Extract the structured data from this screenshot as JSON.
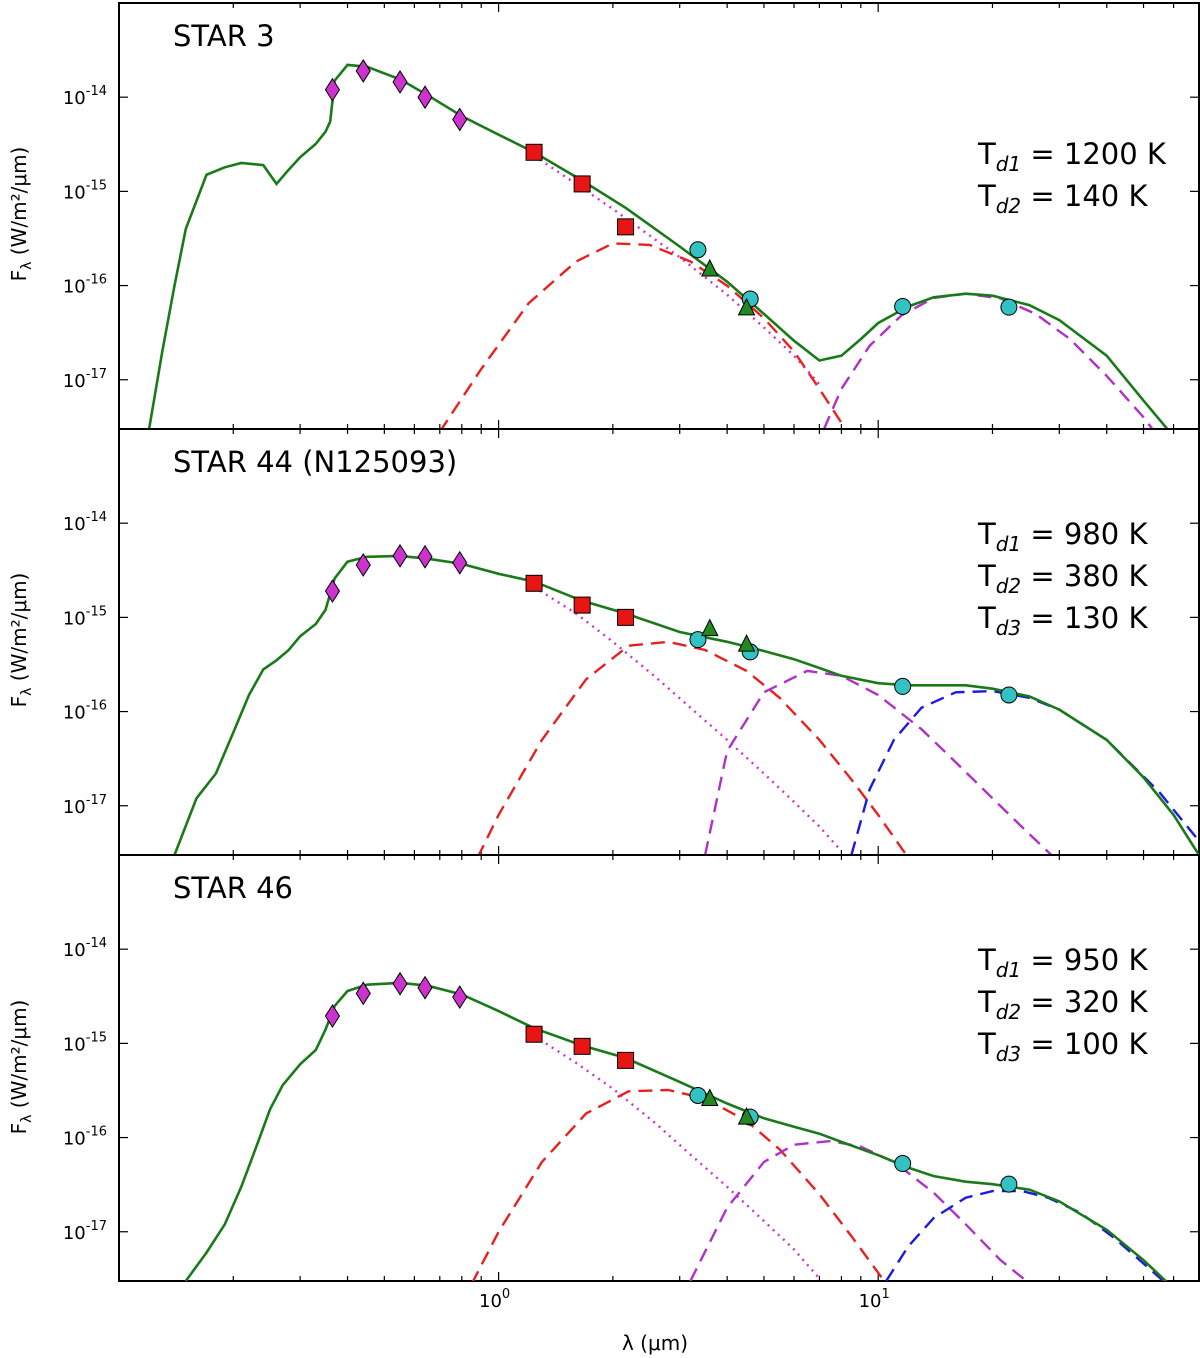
{
  "colors": {
    "model": "#1a7a1a",
    "photosphere": "#cc33cc",
    "dust1": "#e82020",
    "dust2": "#b030c8",
    "dust3": "#1a1ae0",
    "diamond": "#cc33cc",
    "square": "#e81515",
    "circle": "#33c2c2",
    "triangle": "#228822"
  },
  "figure": {
    "xlabel": "λ (μm)",
    "ylabel_prefix": "F",
    "ylabel_sub": "λ",
    "ylabel_units": "(W/m²/μm)"
  },
  "chart_data": [
    {
      "type": "line",
      "title": "STAR 3",
      "xscale": "log",
      "yscale": "log",
      "xlim": [
        0.1,
        70
      ],
      "ylim": [
        3e-18,
        1e-13
      ],
      "xticks": [
        {
          "value": 1,
          "base": "10",
          "exp": "0"
        },
        {
          "value": 10,
          "base": "10",
          "exp": "1"
        }
      ],
      "yticks": [
        {
          "value": 1e-14,
          "base": "10",
          "exp": "-14"
        },
        {
          "value": 1e-15,
          "base": "10",
          "exp": "-15"
        },
        {
          "value": 1e-16,
          "base": "10",
          "exp": "-16"
        },
        {
          "value": 1e-17,
          "base": "10",
          "exp": "-17"
        }
      ],
      "temperatures": [
        {
          "label": "T",
          "sub": "d1",
          "value": " = 1200 K"
        },
        {
          "label": "T",
          "sub": "d2",
          "value": " = 140 K"
        }
      ],
      "photometry": {
        "optical_diamonds": {
          "x": [
            0.365,
            0.44,
            0.55,
            0.64,
            0.79
          ],
          "y": [
            1.2e-14,
            1.9e-14,
            1.45e-14,
            1e-14,
            5.8e-15
          ]
        },
        "nir_squares": {
          "x": [
            1.24,
            1.66,
            2.16
          ],
          "y": [
            2.6e-15,
            1.2e-15,
            4.2e-16
          ]
        },
        "wise_circles": {
          "x": [
            3.35,
            4.6,
            11.6,
            22.1
          ],
          "y": [
            2.4e-16,
            7.2e-17,
            6e-17,
            5.9e-17
          ]
        },
        "irac_triangles": {
          "x": [
            3.6,
            4.5
          ],
          "y": [
            1.5e-16,
            5.8e-17
          ]
        }
      },
      "components": [
        {
          "name": "photosphere",
          "style": "dotted",
          "color": "photosphere",
          "x": [
            1.24,
            2,
            3,
            4,
            5,
            6,
            7
          ],
          "y": [
            2.4e-15,
            6.5e-16,
            2e-16,
            8e-17,
            3.6e-17,
            1.8e-17,
            9e-18
          ]
        },
        {
          "name": "dust1",
          "style": "dashed",
          "color": "dust1",
          "x": [
            0.7,
            0.9,
            1.2,
            1.6,
            2.0,
            2.5,
            3.2,
            4.0,
            5.0,
            6.0,
            7.0,
            8.0
          ],
          "y": [
            2.8e-18,
            1.3e-17,
            6.5e-17,
            1.8e-16,
            2.8e-16,
            2.7e-16,
            1.8e-16,
            1e-16,
            4.5e-17,
            2e-17,
            8e-18,
            3.5e-18
          ]
        },
        {
          "name": "dust2",
          "style": "dashed",
          "color": "dust2",
          "x": [
            7.2,
            8,
            9.5,
            11.5,
            14,
            17,
            21,
            26,
            32,
            40,
            50,
            60
          ],
          "y": [
            3e-18,
            8e-18,
            2.3e-17,
            4.8e-17,
            7.4e-17,
            8.2e-17,
            7.3e-17,
            5e-17,
            2.7e-17,
            1.1e-17,
            4e-18,
            1.5e-18
          ]
        }
      ],
      "model": {
        "x": [
          0.12,
          0.13,
          0.14,
          0.15,
          0.17,
          0.19,
          0.21,
          0.24,
          0.26,
          0.28,
          0.3,
          0.33,
          0.35,
          0.36,
          0.37,
          0.4,
          0.45,
          0.55,
          0.65,
          0.8,
          1.0,
          1.24,
          1.66,
          2.16,
          3.0,
          4.0,
          5.0,
          6.0,
          7.0,
          8.0,
          9.0,
          10,
          12,
          14,
          17,
          20,
          25,
          30,
          40,
          50,
          60
        ],
        "y": [
          3e-18,
          2e-17,
          1e-16,
          4e-16,
          1.5e-15,
          1.8e-15,
          2e-15,
          1.9e-15,
          1.2e-15,
          1.7e-15,
          2.3e-15,
          3.2e-15,
          4.3e-15,
          5.5e-15,
          1.5e-14,
          2.2e-14,
          2.1e-14,
          1.55e-14,
          1.05e-14,
          6.3e-15,
          4e-15,
          2.6e-15,
          1.3e-15,
          6.7e-16,
          2.6e-16,
          1.1e-16,
          5e-17,
          2.6e-17,
          1.6e-17,
          1.8e-17,
          2.7e-17,
          4e-17,
          6e-17,
          7.5e-17,
          8.2e-17,
          7.8e-17,
          6.2e-17,
          4.3e-17,
          1.8e-17,
          6e-18,
          2.5e-18
        ]
      }
    },
    {
      "type": "line",
      "title": "STAR 44 (N125093)",
      "xscale": "log",
      "yscale": "log",
      "xlim": [
        0.1,
        70
      ],
      "ylim": [
        3e-18,
        1e-13
      ],
      "xticks": [
        {
          "value": 1,
          "base": "10",
          "exp": "0"
        },
        {
          "value": 10,
          "base": "10",
          "exp": "1"
        }
      ],
      "yticks": [
        {
          "value": 1e-14,
          "base": "10",
          "exp": "-14"
        },
        {
          "value": 1e-15,
          "base": "10",
          "exp": "-15"
        },
        {
          "value": 1e-16,
          "base": "10",
          "exp": "-16"
        },
        {
          "value": 1e-17,
          "base": "10",
          "exp": "-17"
        }
      ],
      "temperatures": [
        {
          "label": "T",
          "sub": "d1",
          "value": " = 980 K"
        },
        {
          "label": "T",
          "sub": "d2",
          "value": " = 380 K"
        },
        {
          "label": "T",
          "sub": "d3",
          "value": " = 130 K"
        }
      ],
      "photometry": {
        "optical_diamonds": {
          "x": [
            0.365,
            0.44,
            0.55,
            0.64,
            0.79
          ],
          "y": [
            1.9e-15,
            3.6e-15,
            4.5e-15,
            4.4e-15,
            3.8e-15
          ]
        },
        "nir_squares": {
          "x": [
            1.24,
            1.66,
            2.16
          ],
          "y": [
            2.3e-15,
            1.35e-15,
            1e-15
          ]
        },
        "wise_circles": {
          "x": [
            3.35,
            4.6,
            11.6,
            22.1
          ],
          "y": [
            5.8e-16,
            4.3e-16,
            1.85e-16,
            1.5e-16
          ]
        },
        "irac_triangles": {
          "x": [
            3.6,
            4.5
          ],
          "y": [
            7.6e-16,
            5.2e-16
          ]
        }
      },
      "components": [
        {
          "name": "photosphere",
          "style": "dotted",
          "color": "photosphere",
          "x": [
            1.24,
            1.6,
            2.0,
            2.6,
            3.2,
            4.0,
            5.0,
            6.0,
            7.0,
            8.0
          ],
          "y": [
            2.1e-15,
            1.1e-15,
            5.5e-16,
            2.3e-16,
            1.1e-16,
            5e-17,
            2.2e-17,
            1.1e-17,
            6e-18,
            3.3e-18
          ]
        },
        {
          "name": "dust1",
          "style": "dashed",
          "color": "dust1",
          "x": [
            0.88,
            1.0,
            1.3,
            1.7,
            2.2,
            2.8,
            3.5,
            4.5,
            5.5,
            7.0,
            8.5,
            10,
            12
          ],
          "y": [
            2.8e-18,
            8e-18,
            5e-17,
            2.2e-16,
            5e-16,
            5.5e-16,
            4.5e-16,
            2.7e-16,
            1.4e-16,
            5e-17,
            1.9e-17,
            8e-18,
            2.8e-18
          ]
        },
        {
          "name": "dust2",
          "style": "dashed",
          "color": "dust2",
          "x": [
            3.5,
            4.0,
            5.0,
            6.5,
            8.0,
            10,
            13,
            16,
            20,
            25,
            30
          ],
          "y": [
            3e-18,
            3.8e-17,
            1.6e-16,
            2.7e-16,
            2.4e-16,
            1.5e-16,
            6.5e-17,
            2.9e-17,
            1.2e-17,
            5e-18,
            2.5e-18
          ]
        },
        {
          "name": "dust3",
          "style": "dashed",
          "color": "dust3",
          "x": [
            8.5,
            9.5,
            11,
            13,
            16,
            20,
            25,
            30,
            40,
            55,
            75
          ],
          "y": [
            3e-18,
            1.5e-17,
            5e-17,
            1.1e-16,
            1.6e-16,
            1.65e-16,
            1.4e-16,
            1.05e-16,
            5e-17,
            1.4e-17,
            3e-18
          ]
        }
      ],
      "model": {
        "x": [
          0.14,
          0.16,
          0.18,
          0.2,
          0.22,
          0.24,
          0.26,
          0.28,
          0.3,
          0.33,
          0.35,
          0.37,
          0.4,
          0.45,
          0.55,
          0.65,
          0.8,
          1.0,
          1.24,
          1.66,
          2.16,
          3.0,
          4.0,
          5.0,
          6.0,
          7.0,
          8.0,
          10,
          12,
          14,
          17,
          20,
          25,
          30,
          40,
          50,
          60,
          70
        ],
        "y": [
          3e-18,
          1.2e-17,
          2.2e-17,
          6e-17,
          1.5e-16,
          2.8e-16,
          3.5e-16,
          4.5e-16,
          6.3e-16,
          8.5e-16,
          1.2e-15,
          2.6e-15,
          3.9e-15,
          4.4e-15,
          4.5e-15,
          4.2e-15,
          3.7e-15,
          2.9e-15,
          2.4e-15,
          1.5e-15,
          1.1e-15,
          7e-16,
          5.5e-16,
          4.4e-16,
          3.6e-16,
          2.9e-16,
          2.4e-16,
          2e-16,
          1.9e-16,
          1.9e-16,
          1.9e-16,
          1.75e-16,
          1.45e-16,
          1.05e-16,
          5e-17,
          2e-17,
          8e-18,
          3e-18
        ]
      }
    },
    {
      "type": "line",
      "title": "STAR 46",
      "xscale": "log",
      "yscale": "log",
      "xlim": [
        0.1,
        70
      ],
      "ylim": [
        3e-18,
        1e-13
      ],
      "xticks": [
        {
          "value": 1,
          "base": "10",
          "exp": "0"
        },
        {
          "value": 10,
          "base": "10",
          "exp": "1"
        }
      ],
      "yticks": [
        {
          "value": 1e-14,
          "base": "10",
          "exp": "-14"
        },
        {
          "value": 1e-15,
          "base": "10",
          "exp": "-15"
        },
        {
          "value": 1e-16,
          "base": "10",
          "exp": "-16"
        },
        {
          "value": 1e-17,
          "base": "10",
          "exp": "-17"
        }
      ],
      "temperatures": [
        {
          "label": "T",
          "sub": "d1",
          "value": " = 950 K"
        },
        {
          "label": "T",
          "sub": "d2",
          "value": " = 320 K"
        },
        {
          "label": "T",
          "sub": "d3",
          "value": " = 100 K"
        }
      ],
      "photometry": {
        "optical_diamonds": {
          "x": [
            0.365,
            0.44,
            0.55,
            0.64,
            0.79
          ],
          "y": [
            1.95e-15,
            3.4e-15,
            4.3e-15,
            3.9e-15,
            3.1e-15
          ]
        },
        "nir_squares": {
          "x": [
            1.24,
            1.66,
            2.16
          ],
          "y": [
            1.25e-15,
            9.3e-16,
            6.6e-16
          ]
        },
        "wise_circles": {
          "x": [
            3.35,
            4.6,
            11.6,
            22.1
          ],
          "y": [
            2.8e-16,
            1.65e-16,
            5.3e-17,
            3.2e-17
          ]
        },
        "irac_triangles": {
          "x": [
            3.6,
            4.5
          ],
          "y": [
            2.6e-16,
            1.65e-16
          ]
        }
      },
      "components": [
        {
          "name": "photosphere",
          "style": "dotted",
          "color": "photosphere",
          "x": [
            1.24,
            1.6,
            2.0,
            2.6,
            3.2,
            4.0,
            5.0,
            6.0,
            7.0
          ],
          "y": [
            1.2e-15,
            6.2e-16,
            3.3e-16,
            1.4e-16,
            6.6e-17,
            3e-17,
            1.3e-17,
            6.5e-18,
            3.2e-18
          ]
        },
        {
          "name": "dust1",
          "style": "dashed",
          "color": "dust1",
          "x": [
            0.85,
            1.0,
            1.3,
            1.7,
            2.2,
            2.8,
            3.5,
            4.5,
            5.5,
            7.0,
            8.5,
            10.5
          ],
          "y": [
            2.8e-18,
            1e-17,
            5.5e-17,
            1.8e-16,
            3.1e-16,
            3.2e-16,
            2.6e-16,
            1.5e-16,
            7.5e-17,
            2.5e-17,
            9e-18,
            2.8e-18
          ]
        },
        {
          "name": "dust2",
          "style": "dashed",
          "color": "dust2",
          "x": [
            3.2,
            4.0,
            5.0,
            6.0,
            7.5,
            9.0,
            11,
            14,
            17,
            21,
            26
          ],
          "y": [
            3e-18,
            1.8e-17,
            5.5e-17,
            8.4e-17,
            9.2e-17,
            8e-17,
            5.5e-17,
            2.6e-17,
            1.2e-17,
            5e-18,
            2.5e-18
          ]
        },
        {
          "name": "dust3",
          "style": "dashed",
          "color": "dust3",
          "x": [
            10.5,
            12,
            14,
            17,
            20,
            24,
            28,
            34,
            42,
            52,
            60
          ],
          "y": [
            3e-18,
            7e-18,
            1.4e-17,
            2.3e-17,
            2.7e-17,
            2.7e-17,
            2.3e-17,
            1.6e-17,
            8.5e-18,
            4e-18,
            2.4e-18
          ]
        }
      ],
      "model": {
        "x": [
          0.15,
          0.17,
          0.19,
          0.21,
          0.23,
          0.25,
          0.27,
          0.3,
          0.33,
          0.35,
          0.37,
          0.4,
          0.45,
          0.55,
          0.65,
          0.8,
          1.0,
          1.24,
          1.66,
          2.16,
          3.0,
          4.0,
          5.0,
          6.0,
          7.0,
          8.0,
          10,
          12,
          14,
          17,
          20,
          25,
          30,
          40,
          50,
          60
        ],
        "y": [
          3e-18,
          6e-18,
          1.2e-17,
          3e-17,
          8e-17,
          2e-16,
          3.6e-16,
          6e-16,
          8.5e-16,
          1.4e-15,
          2.5e-15,
          3.6e-15,
          4.2e-15,
          4.4e-15,
          4.1e-15,
          3.3e-15,
          2.2e-15,
          1.45e-15,
          9.5e-16,
          7e-16,
          3.9e-16,
          2.3e-16,
          1.6e-16,
          1.3e-16,
          1.1e-16,
          9e-17,
          6.5e-17,
          4.8e-17,
          3.9e-17,
          3.4e-17,
          3.2e-17,
          2.8e-17,
          2.1e-17,
          1.05e-17,
          5e-18,
          2.5e-18
        ]
      }
    }
  ]
}
